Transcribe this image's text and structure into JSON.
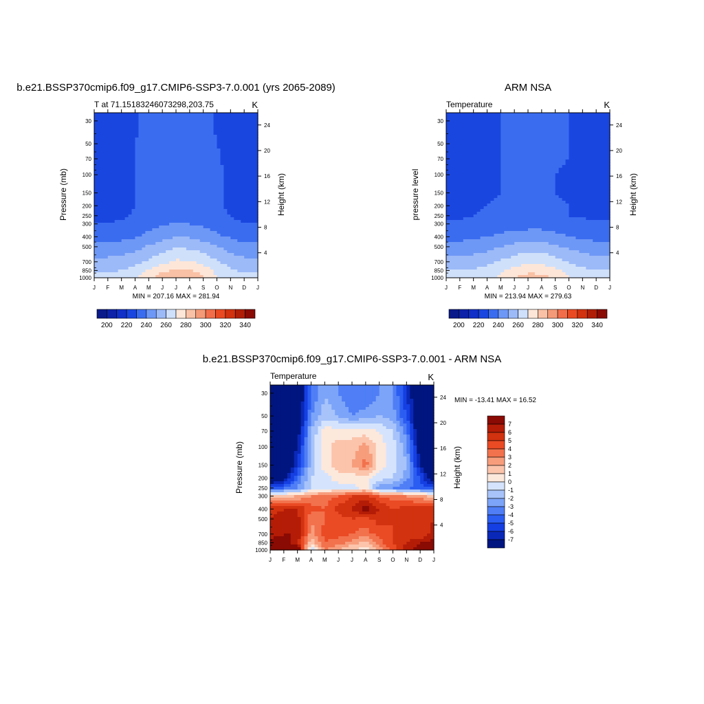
{
  "colors": {
    "temp_palette": [
      "#0a1a8a",
      "#0d22a8",
      "#1030c8",
      "#1a46e0",
      "#3a6cf0",
      "#6e98f6",
      "#9cbaf8",
      "#cfe0fb",
      "#fde6d8",
      "#f9c1a6",
      "#f59a78",
      "#f26e4a",
      "#ea4a22",
      "#d2320f",
      "#b01e08",
      "#8a0a04"
    ],
    "diff_palette": [
      "#00157f",
      "#0a28b8",
      "#153fe2",
      "#2b5df2",
      "#4f7ef6",
      "#7ca4f8",
      "#a7c3fa",
      "#d5e4fc",
      "#fde8dc",
      "#fbc4ab",
      "#f79d7c",
      "#f2724d",
      "#ea4a24",
      "#d2320f",
      "#b41c07",
      "#8a0a04"
    ]
  },
  "panels": {
    "model": {
      "title": "b.e21.BSSP370cmip6.f09_g17.CMIP6-SSP3-7.0.001 (yrs 2065-2089)",
      "left_string": "T at 71.15183246073298,203.75",
      "right_string": "K",
      "left_axis_label": "Pressure (mb)",
      "right_axis_label": "Height (km)",
      "min_max": "MIN = 207.16 MAX = 281.94"
    },
    "obs": {
      "title": "ARM NSA",
      "left_string": "Temperature",
      "right_string": "K",
      "left_axis_label": "pressure level",
      "right_axis_label": "Height (km)",
      "min_max": "MIN = 213.94 MAX = 279.63"
    },
    "diff": {
      "title": "b.e21.BSSP370cmip6.f09_g17.CMIP6-SSP3-7.0.001 - ARM NSA",
      "left_string": "Temperature",
      "right_string": "K",
      "left_axis_label": "Pressure (mb)",
      "right_axis_label": "Height (km)",
      "min_max": "MIN = -13.41 MAX =  16.52"
    }
  },
  "axes": {
    "pressure_ticks": [
      30,
      50,
      70,
      100,
      150,
      200,
      250,
      300,
      400,
      500,
      700,
      850,
      1000
    ],
    "height_ticks": [
      4,
      8,
      12,
      16,
      20,
      24
    ],
    "month_ticks": [
      "J",
      "F",
      "M",
      "A",
      "M",
      "J",
      "J",
      "A",
      "S",
      "O",
      "N",
      "D",
      "J"
    ]
  },
  "colorbars": {
    "temp_labels": [
      "200",
      "220",
      "240",
      "260",
      "280",
      "300",
      "320",
      "340"
    ],
    "diff_labels": [
      "7",
      "6",
      "5",
      "4",
      "3",
      "2",
      "1",
      "0",
      "-1",
      "-2",
      "-3",
      "-4",
      "-5",
      "-6",
      "-7"
    ]
  },
  "chart_data": [
    {
      "type": "heatmap",
      "title": "b.e21.BSSP370cmip6.f09_g17.CMIP6-SSP3-7.0.001 (yrs 2065-2089)",
      "subtitle": "T at 71.15183246073298,203.75",
      "units": "K",
      "xlabel": "",
      "ylabel": "Pressure (mb)",
      "ylabel_right": "Height (km)",
      "x_categories": [
        "J",
        "F",
        "M",
        "A",
        "M",
        "J",
        "J",
        "A",
        "S",
        "O",
        "N",
        "D",
        "J"
      ],
      "y_levels_mb": [
        30,
        50,
        70,
        100,
        150,
        200,
        250,
        300,
        400,
        500,
        700,
        850,
        1000
      ],
      "ylim": [
        1000,
        25
      ],
      "y_scale": "log",
      "contour_levels": [
        195,
        200,
        205,
        210,
        220,
        230,
        240,
        250,
        260,
        270,
        280,
        290,
        300,
        310,
        320,
        330,
        340,
        345
      ],
      "min": 207.16,
      "max": 281.94,
      "values": [
        [
          214,
          215,
          217,
          219,
          222,
          225,
          226,
          226,
          223,
          219,
          216,
          214,
          214
        ],
        [
          215,
          216,
          218,
          220,
          222,
          224,
          225,
          225,
          223,
          220,
          217,
          215,
          215
        ],
        [
          216,
          217,
          218,
          220,
          222,
          223,
          224,
          224,
          223,
          221,
          218,
          216,
          216
        ],
        [
          217,
          217,
          218,
          220,
          221,
          222,
          223,
          223,
          222,
          221,
          219,
          217,
          217
        ],
        [
          217,
          217,
          218,
          220,
          221,
          222,
          222,
          222,
          222,
          221,
          219,
          217,
          217
        ],
        [
          217,
          217,
          218,
          220,
          221,
          222,
          222,
          222,
          222,
          221,
          219,
          217,
          217
        ],
        [
          218,
          218,
          219,
          221,
          223,
          225,
          226,
          226,
          224,
          222,
          220,
          218,
          218
        ],
        [
          220,
          220,
          221,
          223,
          226,
          229,
          231,
          230,
          228,
          225,
          222,
          220,
          220
        ],
        [
          226,
          226,
          227,
          229,
          233,
          237,
          240,
          239,
          236,
          232,
          229,
          226,
          226
        ],
        [
          233,
          233,
          234,
          237,
          241,
          245,
          249,
          248,
          245,
          240,
          236,
          233,
          233
        ],
        [
          243,
          243,
          244,
          247,
          252,
          257,
          262,
          261,
          257,
          251,
          246,
          243,
          243
        ],
        [
          249,
          249,
          250,
          254,
          261,
          268,
          272,
          271,
          265,
          257,
          251,
          249,
          249
        ],
        [
          253,
          252,
          254,
          258,
          266,
          276,
          281,
          279,
          271,
          261,
          255,
          253,
          253
        ]
      ]
    },
    {
      "type": "heatmap",
      "title": "ARM NSA",
      "subtitle": "Temperature",
      "units": "K",
      "xlabel": "",
      "ylabel": "pressure level",
      "ylabel_right": "Height (km)",
      "x_categories": [
        "J",
        "F",
        "M",
        "A",
        "M",
        "J",
        "J",
        "A",
        "S",
        "O",
        "N",
        "D",
        "J"
      ],
      "y_levels_mb": [
        30,
        50,
        70,
        100,
        150,
        200,
        250,
        300,
        400,
        500,
        700,
        850,
        1000
      ],
      "ylim": [
        1000,
        25
      ],
      "y_scale": "log",
      "contour_levels": [
        195,
        200,
        205,
        210,
        220,
        230,
        240,
        250,
        260,
        270,
        280,
        290,
        300,
        310,
        320,
        330,
        340,
        345
      ],
      "min": 213.94,
      "max": 279.63,
      "values": [
        [
          217,
          217,
          218,
          219,
          220,
          221,
          222,
          222,
          221,
          220,
          218,
          217,
          217
        ],
        [
          217,
          217,
          218,
          219,
          220,
          221,
          221,
          221,
          221,
          220,
          218,
          217,
          217
        ],
        [
          217,
          217,
          218,
          219,
          220,
          221,
          221,
          221,
          221,
          220,
          218,
          217,
          217
        ],
        [
          217,
          217,
          218,
          219,
          220,
          221,
          221,
          221,
          220,
          219,
          218,
          217,
          217
        ],
        [
          218,
          218,
          218,
          219,
          220,
          221,
          221,
          221,
          220,
          219,
          218,
          218,
          218
        ],
        [
          218,
          218,
          219,
          220,
          221,
          221,
          221,
          221,
          221,
          220,
          219,
          218,
          218
        ],
        [
          219,
          219,
          220,
          221,
          222,
          222,
          222,
          222,
          221,
          220,
          219,
          219,
          219
        ],
        [
          221,
          221,
          222,
          224,
          225,
          226,
          226,
          226,
          225,
          223,
          222,
          221,
          221
        ],
        [
          227,
          227,
          228,
          230,
          232,
          234,
          235,
          235,
          233,
          230,
          228,
          227,
          227
        ],
        [
          234,
          234,
          235,
          237,
          240,
          243,
          245,
          245,
          242,
          238,
          236,
          234,
          234
        ],
        [
          244,
          244,
          245,
          247,
          251,
          255,
          258,
          258,
          254,
          249,
          246,
          244,
          244
        ],
        [
          250,
          250,
          251,
          253,
          258,
          264,
          267,
          266,
          262,
          256,
          252,
          250,
          250
        ],
        [
          253,
          253,
          254,
          256,
          262,
          270,
          275,
          274,
          268,
          260,
          255,
          253,
          253
        ]
      ]
    },
    {
      "type": "heatmap",
      "title": "b.e21.BSSP370cmip6.f09_g17.CMIP6-SSP3-7.0.001 - ARM NSA",
      "subtitle": "Temperature",
      "units": "K",
      "xlabel": "",
      "ylabel": "Pressure (mb)",
      "ylabel_right": "Height (km)",
      "x_categories": [
        "J",
        "F",
        "M",
        "A",
        "M",
        "J",
        "J",
        "A",
        "S",
        "O",
        "N",
        "D",
        "J"
      ],
      "y_levels_mb": [
        30,
        50,
        70,
        100,
        150,
        200,
        250,
        300,
        400,
        500,
        700,
        850,
        1000
      ],
      "ylim": [
        1000,
        25
      ],
      "y_scale": "log",
      "contour_levels": [
        -8,
        -7,
        -6,
        -5,
        -4,
        -3,
        -2,
        -1,
        0,
        1,
        2,
        3,
        4,
        5,
        6,
        7,
        8
      ],
      "min": -13.41,
      "max": 16.52,
      "values": [
        [
          -9,
          -9,
          -9,
          -4,
          -2,
          -3,
          -4,
          -4,
          -3,
          -3,
          -6,
          -9,
          -9
        ],
        [
          -9,
          -9,
          -9,
          -3,
          -1.5,
          -2,
          -3,
          -2.5,
          -2,
          -2.5,
          -5,
          -9,
          -9
        ],
        [
          -9,
          -9,
          -8,
          -2,
          0.5,
          0.5,
          0.5,
          0.5,
          0,
          -1,
          -3.5,
          -9,
          -9
        ],
        [
          -9,
          -9,
          -7,
          -1.5,
          0.5,
          1.5,
          1.5,
          2.5,
          0.5,
          -0.5,
          -2.5,
          -8,
          -9
        ],
        [
          -9,
          -9,
          -6,
          -1.5,
          0.5,
          1.5,
          2,
          3.5,
          0.5,
          -0.5,
          -2,
          -7,
          -9
        ],
        [
          -9,
          -8,
          -4,
          -1,
          -0.5,
          0.5,
          0.5,
          0.5,
          -0.5,
          -1,
          -2.5,
          -5,
          -9
        ],
        [
          -5,
          -4,
          -3,
          -1,
          -0.5,
          -0.5,
          -0.5,
          0.5,
          -2.5,
          -3,
          -4,
          -4.5,
          -5
        ],
        [
          1.5,
          1.5,
          2,
          3,
          3.5,
          4,
          5,
          5.5,
          4,
          3.5,
          3,
          2.5,
          1.5
        ],
        [
          5.5,
          6,
          6,
          4.5,
          4,
          5.5,
          6,
          7.5,
          6,
          5,
          5.5,
          5.5,
          5.5
        ],
        [
          6,
          6.5,
          6.5,
          3,
          4,
          4.5,
          5,
          4.5,
          5.5,
          5,
          5,
          5.5,
          6
        ],
        [
          6.5,
          7,
          7,
          2.5,
          4.5,
          4.5,
          4,
          3.5,
          4.5,
          5,
          5,
          5,
          6.5
        ],
        [
          7.5,
          7.5,
          6.5,
          1,
          4,
          3.5,
          2.5,
          1.5,
          3.5,
          5,
          6,
          7,
          7.5
        ],
        [
          8,
          8.5,
          8.5,
          -1,
          3,
          2,
          1,
          0.5,
          2.5,
          4,
          6.5,
          7.5,
          8
        ]
      ]
    }
  ]
}
